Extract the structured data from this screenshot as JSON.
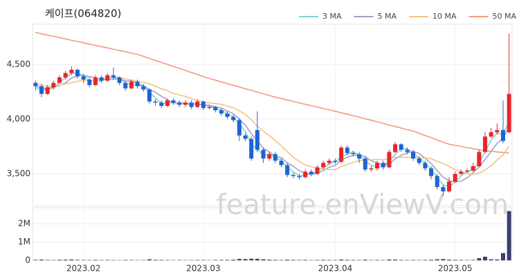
{
  "chart_data": {
    "type": "candlestick",
    "title": "케이프(064820)",
    "watermark": "feature.enViewV.com",
    "categories": [
      null,
      null,
      null,
      null,
      null,
      null,
      null,
      null,
      "2023.02",
      null,
      null,
      null,
      null,
      null,
      null,
      null,
      null,
      null,
      null,
      null,
      null,
      null,
      null,
      null,
      null,
      null,
      null,
      null,
      "2023.03",
      null,
      null,
      null,
      null,
      null,
      null,
      null,
      null,
      null,
      null,
      null,
      null,
      null,
      null,
      null,
      null,
      null,
      null,
      null,
      null,
      null,
      "2023.04",
      null,
      null,
      null,
      null,
      null,
      null,
      null,
      null,
      null,
      null,
      null,
      null,
      null,
      null,
      null,
      null,
      null,
      null,
      null,
      "2023.05",
      null,
      null,
      null,
      null,
      null,
      null,
      null,
      null,
      null
    ],
    "open": [
      4330,
      4300,
      4230,
      4290,
      4330,
      4380,
      4420,
      4450,
      4390,
      4360,
      4310,
      4380,
      4350,
      4400,
      4380,
      4330,
      4280,
      4340,
      4300,
      4270,
      4160,
      4150,
      4120,
      4170,
      4150,
      4130,
      4150,
      4110,
      4160,
      4100,
      4110,
      4080,
      4050,
      4020,
      3990,
      3850,
      3820,
      3900,
      3720,
      3640,
      3680,
      3620,
      3580,
      3490,
      3480,
      3470,
      3520,
      3500,
      3560,
      3600,
      3620,
      3610,
      3740,
      3690,
      3680,
      3640,
      3540,
      3550,
      3600,
      3560,
      3700,
      3770,
      3720,
      3700,
      3640,
      3600,
      3550,
      3480,
      3380,
      3340,
      3430,
      3500,
      3520,
      3530,
      3570,
      3700,
      3840,
      3880,
      3900,
      3880
    ],
    "high": [
      4350,
      4320,
      4310,
      4350,
      4400,
      4440,
      4480,
      4460,
      4410,
      4380,
      4400,
      4400,
      4420,
      4470,
      4390,
      4350,
      4360,
      4360,
      4320,
      4280,
      4180,
      4170,
      4190,
      4190,
      4170,
      4170,
      4170,
      4180,
      4170,
      4130,
      4120,
      4100,
      4070,
      4040,
      4010,
      3870,
      3840,
      4070,
      3740,
      3700,
      3700,
      3640,
      3600,
      3510,
      3500,
      3540,
      3540,
      3580,
      3620,
      3640,
      3640,
      3760,
      3760,
      3710,
      3700,
      3660,
      3570,
      3620,
      3620,
      3720,
      3790,
      3780,
      3740,
      3720,
      3660,
      3620,
      3570,
      3500,
      3400,
      3470,
      3520,
      3540,
      3550,
      3600,
      3720,
      3880,
      3920,
      3960,
      4170,
      4780
    ],
    "low": [
      4260,
      4200,
      4220,
      4270,
      4320,
      4360,
      4400,
      4370,
      4330,
      4290,
      4300,
      4330,
      4340,
      4360,
      4310,
      4260,
      4270,
      4280,
      4250,
      4140,
      4120,
      4100,
      4110,
      4130,
      4110,
      4110,
      4090,
      4100,
      4080,
      4090,
      4060,
      4030,
      4000,
      3970,
      3800,
      3800,
      3620,
      3700,
      3600,
      3620,
      3600,
      3560,
      3470,
      3460,
      3450,
      3460,
      3480,
      3490,
      3540,
      3580,
      3590,
      3600,
      3670,
      3660,
      3600,
      3520,
      3520,
      3530,
      3540,
      3550,
      3690,
      3700,
      3680,
      3620,
      3580,
      3530,
      3450,
      3360,
      3300,
      3330,
      3420,
      3490,
      3510,
      3520,
      3560,
      3690,
      3830,
      3860,
      3780,
      3870
    ],
    "close": [
      4300,
      4230,
      4290,
      4330,
      4380,
      4420,
      4450,
      4390,
      4360,
      4310,
      4380,
      4350,
      4400,
      4380,
      4330,
      4280,
      4340,
      4300,
      4270,
      4160,
      4150,
      4120,
      4170,
      4150,
      4130,
      4150,
      4110,
      4160,
      4100,
      4110,
      4080,
      4050,
      4020,
      3990,
      3850,
      3820,
      3640,
      3720,
      3640,
      3680,
      3620,
      3580,
      3490,
      3480,
      3470,
      3520,
      3500,
      3560,
      3600,
      3620,
      3610,
      3740,
      3690,
      3680,
      3640,
      3540,
      3550,
      3600,
      3560,
      3700,
      3770,
      3720,
      3700,
      3640,
      3600,
      3550,
      3480,
      3380,
      3340,
      3430,
      3500,
      3520,
      3530,
      3570,
      3700,
      3840,
      3880,
      3900,
      3800,
      4230
    ],
    "up_color": "#e8252b",
    "down_color": "#1e63d6",
    "series": [
      {
        "name": "3 MA",
        "color": "#7fd3d6",
        "values": [
          4290,
          4260,
          4273,
          4283,
          4333,
          4377,
          4417,
          4420,
          4400,
          4353,
          4350,
          4347,
          4377,
          4377,
          4370,
          4330,
          4317,
          4307,
          4303,
          4243,
          4193,
          4143,
          4147,
          4147,
          4150,
          4143,
          4130,
          4140,
          4123,
          4123,
          4097,
          4080,
          4050,
          4020,
          3953,
          3887,
          3770,
          3727,
          3667,
          3680,
          3647,
          3627,
          3563,
          3517,
          3480,
          3490,
          3497,
          3527,
          3553,
          3593,
          3610,
          3657,
          3680,
          3703,
          3670,
          3620,
          3577,
          3563,
          3570,
          3620,
          3677,
          3730,
          3730,
          3687,
          3647,
          3597,
          3543,
          3470,
          3400,
          3383,
          3423,
          3483,
          3517,
          3540,
          3600,
          3703,
          3807,
          3873,
          3860,
          3977
        ]
      },
      {
        "name": "5 MA",
        "color": "#a99cc9",
        "values": [
          4310,
          4280,
          4280,
          4290,
          4306,
          4330,
          4374,
          4394,
          4400,
          4386,
          4378,
          4358,
          4360,
          4364,
          4368,
          4348,
          4346,
          4326,
          4304,
          4270,
          4244,
          4208,
          4174,
          4150,
          4144,
          4144,
          4142,
          4140,
          4130,
          4126,
          4112,
          4100,
          4072,
          4050,
          3998,
          3946,
          3864,
          3804,
          3734,
          3700,
          3660,
          3648,
          3602,
          3570,
          3528,
          3508,
          3492,
          3506,
          3530,
          3560,
          3578,
          3626,
          3652,
          3668,
          3672,
          3658,
          3620,
          3602,
          3578,
          3590,
          3636,
          3670,
          3690,
          3706,
          3686,
          3642,
          3594,
          3530,
          3470,
          3436,
          3426,
          3434,
          3464,
          3510,
          3564,
          3632,
          3704,
          3778,
          3824,
          3930
        ]
      },
      {
        "name": "10 MA",
        "color": "#f2c387",
        "values": [
          4330,
          4310,
          4300,
          4300,
          4310,
          4320,
          4330,
          4345,
          4353,
          4349,
          4357,
          4369,
          4380,
          4385,
          4380,
          4366,
          4355,
          4346,
          4337,
          4322,
          4299,
          4276,
          4259,
          4234,
          4220,
          4207,
          4184,
          4170,
          4153,
          4148,
          4141,
          4134,
          4119,
          4103,
          4075,
          4042,
          3995,
          3936,
          3890,
          3849,
          3803,
          3756,
          3703,
          3652,
          3614,
          3580,
          3566,
          3550,
          3546,
          3540,
          3539,
          3565,
          3585,
          3605,
          3622,
          3624,
          3629,
          3633,
          3629,
          3637,
          3653,
          3651,
          3652,
          3648,
          3644,
          3645,
          3638,
          3616,
          3594,
          3567,
          3540,
          3520,
          3503,
          3496,
          3506,
          3535,
          3575,
          3627,
          3673,
          3753
        ]
      },
      {
        "name": "50 MA",
        "color": "#f39a84",
        "values": [
          4790,
          4778,
          4766,
          4755,
          4743,
          4731,
          4719,
          4708,
          4696,
          4684,
          4672,
          4661,
          4649,
          4637,
          4625,
          4614,
          4602,
          4590,
          4572,
          4553,
          4535,
          4517,
          4498,
          4480,
          4462,
          4443,
          4425,
          4407,
          4388,
          4370,
          4355,
          4339,
          4324,
          4308,
          4293,
          4277,
          4262,
          4246,
          4231,
          4215,
          4200,
          4187,
          4174,
          4161,
          4148,
          4135,
          4123,
          4110,
          4097,
          4084,
          4071,
          4058,
          4045,
          4031,
          4017,
          4003,
          3989,
          3975,
          3961,
          3946,
          3932,
          3918,
          3904,
          3890,
          3870,
          3850,
          3830,
          3810,
          3790,
          3770,
          3760,
          3750,
          3740,
          3730,
          3720,
          3710,
          3705,
          3700,
          3695,
          3690
        ]
      }
    ],
    "ylim": [
      3210,
      4865
    ],
    "yticks": [
      {
        "value": 3500,
        "label": "3,500"
      },
      {
        "value": 4000,
        "label": "4,000"
      },
      {
        "value": 4500,
        "label": "4,500"
      }
    ],
    "grid": true,
    "volume": {
      "color": "#3b3e6e",
      "values": [
        30000,
        45000,
        25000,
        20000,
        35000,
        40000,
        50000,
        30000,
        25000,
        20000,
        30000,
        20000,
        25000,
        20000,
        15000,
        25000,
        20000,
        15000,
        20000,
        60000,
        30000,
        25000,
        20000,
        15000,
        20000,
        15000,
        20000,
        25000,
        20000,
        15000,
        25000,
        30000,
        30000,
        40000,
        80000,
        70000,
        90000,
        85000,
        60000,
        40000,
        30000,
        25000,
        40000,
        30000,
        25000,
        30000,
        20000,
        25000,
        30000,
        25000,
        20000,
        50000,
        30000,
        25000,
        20000,
        40000,
        20000,
        25000,
        20000,
        50000,
        45000,
        25000,
        20000,
        25000,
        20000,
        30000,
        35000,
        60000,
        70000,
        40000,
        30000,
        25000,
        20000,
        25000,
        120000,
        200000,
        60000,
        50000,
        400000,
        2700000
      ],
      "ylim": [
        0,
        2880000
      ],
      "yticks": [
        0,
        {
          "value": 1000000,
          "label": "1M"
        },
        {
          "value": 2000000,
          "label": "2M"
        }
      ]
    }
  }
}
